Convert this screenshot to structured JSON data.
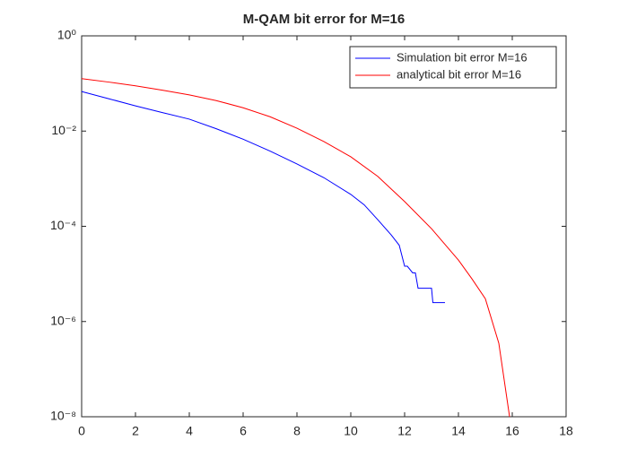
{
  "chart_data": {
    "type": "line",
    "title": "M-QAM bit error for M=16",
    "log_y": true,
    "legend_position": "upper right",
    "xlim": [
      0,
      18
    ],
    "xticks": [
      0,
      2,
      4,
      6,
      8,
      10,
      12,
      14,
      16,
      18
    ],
    "ylim": [
      1e-08,
      1
    ],
    "yticks": [
      {
        "value": 1,
        "label": "10⁰"
      },
      {
        "value": 0.01,
        "label": "10⁻²"
      },
      {
        "value": 0.0001,
        "label": "10⁻⁴"
      },
      {
        "value": 1e-06,
        "label": "10⁻⁶"
      },
      {
        "value": 1e-08,
        "label": "10⁻⁸"
      }
    ],
    "series": [
      {
        "name": "Simulation bit error M=16",
        "color": "#0000ff",
        "x": [
          0,
          1,
          2,
          3,
          4,
          5,
          6,
          7,
          8,
          9,
          10,
          10.5,
          11,
          11.5,
          11.8,
          12,
          12.1,
          12.3,
          12.4,
          12.5,
          12.6,
          13,
          13.05,
          13.5
        ],
        "values": [
          0.0676,
          0.0479,
          0.0339,
          0.0245,
          0.0178,
          0.0112,
          0.00676,
          0.0038,
          0.00204,
          0.00105,
          0.000468,
          0.000282,
          0.000138,
          6.6e-05,
          4e-05,
          1.45e-05,
          1.45e-05,
          1.05e-05,
          1.05e-05,
          5e-06,
          5e-06,
          5e-06,
          2.5e-06,
          2.5e-06
        ]
      },
      {
        "name": "analytical bit error M=16",
        "color": "#ff0000",
        "x": [
          0,
          1,
          2,
          3,
          4,
          5,
          6,
          7,
          8,
          9,
          10,
          11,
          12,
          13,
          14,
          14.5,
          15,
          15.5,
          15.9
        ],
        "values": [
          0.126,
          0.107,
          0.0891,
          0.0724,
          0.0575,
          0.0437,
          0.0309,
          0.02,
          0.0115,
          0.00603,
          0.00288,
          0.00112,
          0.000331,
          8.9e-05,
          1.95e-05,
          7.9e-06,
          3e-06,
          3.5e-07,
          1e-08
        ]
      }
    ]
  }
}
